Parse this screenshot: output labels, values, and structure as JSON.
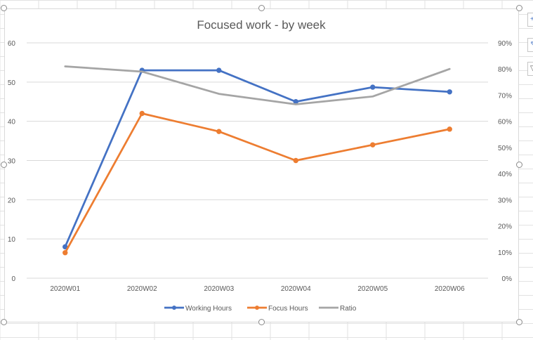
{
  "chart_data": {
    "type": "line",
    "title": "Focused work - by week",
    "categories": [
      "2020W01",
      "2020W02",
      "2020W03",
      "2020W04",
      "2020W05",
      "2020W06"
    ],
    "y_left": {
      "ticks": [
        "0",
        "10",
        "20",
        "30",
        "40",
        "50",
        "60"
      ],
      "ylim": [
        0,
        60
      ]
    },
    "y_right": {
      "ticks": [
        "0%",
        "10%",
        "20%",
        "30%",
        "40%",
        "50%",
        "60%",
        "70%",
        "80%",
        "90%"
      ],
      "ylim": [
        0,
        0.9
      ]
    },
    "series": [
      {
        "name": "Working Hours",
        "axis": "left",
        "color": "#4472c4",
        "markers": true,
        "values": [
          8,
          53,
          53,
          45,
          48.7,
          47.5
        ]
      },
      {
        "name": "Focus Hours",
        "axis": "left",
        "color": "#ed7d31",
        "markers": true,
        "values": [
          6.5,
          42,
          37.4,
          30,
          34,
          38
        ]
      },
      {
        "name": "Ratio",
        "axis": "right",
        "color": "#a5a5a5",
        "markers": false,
        "values": [
          0.81,
          0.79,
          0.705,
          0.665,
          0.695,
          0.8
        ]
      }
    ],
    "grid": true,
    "legend": "bottom"
  },
  "ui": {
    "side_buttons": [
      "+",
      "brush-icon",
      "filter-icon"
    ]
  }
}
